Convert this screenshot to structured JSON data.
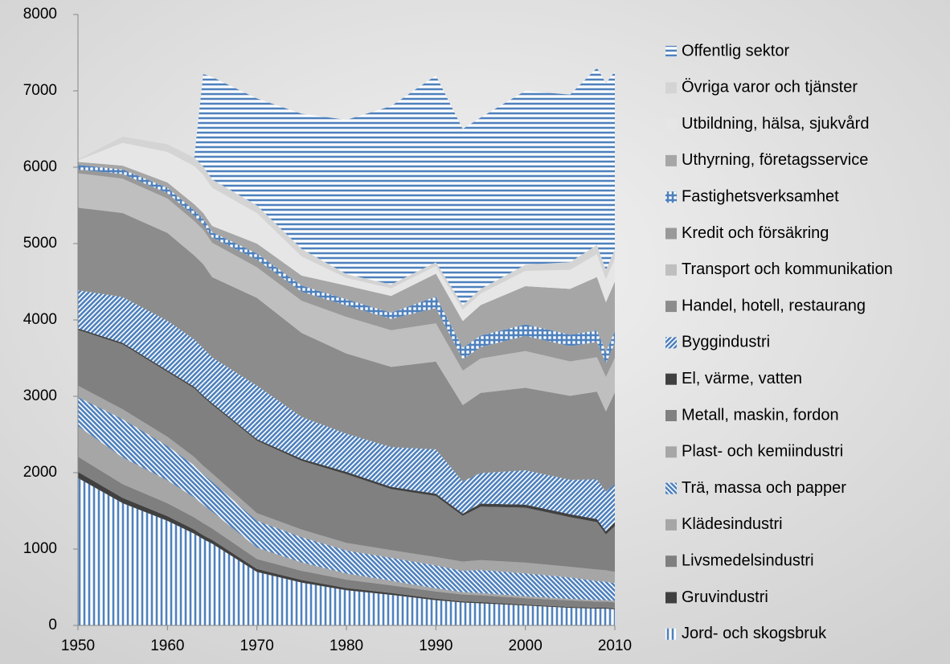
{
  "chart_data": {
    "type": "stacked_area",
    "x": [
      1950,
      1955,
      1960,
      1963,
      1964,
      1965,
      1970,
      1975,
      1980,
      1985,
      1990,
      1993,
      1995,
      2000,
      2005,
      2008,
      2009,
      2010
    ],
    "xlim": [
      1950,
      2010
    ],
    "xticks": [
      1950,
      1960,
      1970,
      1980,
      1990,
      2000,
      2010
    ],
    "ylim": [
      0,
      8000
    ],
    "yticks": [
      0,
      1000,
      2000,
      3000,
      4000,
      5000,
      6000,
      7000,
      8000
    ],
    "series": [
      {
        "name": "Jord- och skogsbruk",
        "color": "#4f81bd",
        "pattern": "vertical",
        "values": [
          1930,
          1600,
          1370,
          1200,
          1130,
          1070,
          700,
          560,
          460,
          400,
          330,
          300,
          290,
          260,
          230,
          220,
          220,
          210
        ]
      },
      {
        "name": "Gruvindustri",
        "color": "#404040",
        "values": [
          80,
          70,
          60,
          55,
          50,
          50,
          40,
          35,
          30,
          25,
          20,
          15,
          15,
          12,
          12,
          12,
          12,
          12
        ]
      },
      {
        "name": "Livsmedelsindustri",
        "color": "#7f7f7f",
        "values": [
          200,
          180,
          170,
          160,
          160,
          150,
          130,
          120,
          110,
          100,
          95,
          90,
          90,
          85,
          85,
          80,
          80,
          80
        ]
      },
      {
        "name": "Klädesindustri",
        "color": "#a6a6a6",
        "values": [
          400,
          350,
          300,
          260,
          240,
          220,
          150,
          110,
          80,
          60,
          40,
          30,
          30,
          25,
          20,
          20,
          20,
          20
        ]
      },
      {
        "name": "Trä, massa och papper",
        "color": "#4f81bd",
        "pattern": "diagonal-down",
        "values": [
          380,
          500,
          450,
          420,
          400,
          390,
          350,
          330,
          300,
          300,
          300,
          280,
          300,
          300,
          280,
          250,
          240,
          230
        ]
      },
      {
        "name": "Plast- och kemiindustri",
        "color": "#a6a6a6",
        "values": [
          150,
          130,
          120,
          110,
          110,
          110,
          100,
          100,
          100,
          100,
          110,
          120,
          130,
          140,
          140,
          150,
          150,
          150
        ]
      },
      {
        "name": "Metall, maskin, fordon",
        "color": "#808080",
        "values": [
          730,
          850,
          850,
          900,
          900,
          900,
          950,
          900,
          900,
          800,
          800,
          600,
          700,
          720,
          650,
          620,
          470,
          600
        ]
      },
      {
        "name": "El, värme, vatten",
        "color": "#404040",
        "values": [
          20,
          20,
          20,
          20,
          20,
          20,
          20,
          25,
          30,
          30,
          30,
          30,
          40,
          40,
          40,
          40,
          40,
          50
        ]
      },
      {
        "name": "Byggindustri",
        "color": "#4f81bd",
        "pattern": "diagonal-up",
        "values": [
          500,
          600,
          650,
          620,
          620,
          600,
          700,
          550,
          500,
          520,
          580,
          420,
          400,
          450,
          450,
          520,
          520,
          500
        ]
      },
      {
        "name": "Handel, hotell, restaurang",
        "color": "#8c8c8c",
        "values": [
          1080,
          1100,
          1150,
          1100,
          1100,
          1050,
          1150,
          1100,
          1050,
          1050,
          1150,
          1000,
          1050,
          1080,
          1100,
          1150,
          1050,
          1200
        ]
      },
      {
        "name": "Transport och kommunikation",
        "color": "#bfbfbf",
        "values": [
          450,
          450,
          450,
          450,
          450,
          450,
          400,
          420,
          480,
          480,
          500,
          450,
          450,
          480,
          450,
          450,
          450,
          450
        ]
      },
      {
        "name": "Kredit och försäkring",
        "color": "#999999",
        "values": [
          50,
          60,
          70,
          70,
          70,
          70,
          100,
          120,
          150,
          150,
          200,
          150,
          150,
          200,
          200,
          200,
          180,
          200
        ]
      },
      {
        "name": "Fastighetsverksamhet",
        "color": "#4f81bd",
        "pattern": "grid",
        "values": [
          60,
          60,
          70,
          70,
          70,
          70,
          80,
          80,
          80,
          80,
          150,
          150,
          150,
          150,
          150,
          150,
          150,
          150
        ]
      },
      {
        "name": "Uthyrning, företagsservice",
        "color": "#a6a6a6",
        "values": [
          40,
          50,
          70,
          80,
          80,
          80,
          130,
          130,
          180,
          220,
          300,
          350,
          400,
          500,
          600,
          700,
          650,
          650
        ]
      },
      {
        "name": "Utbildning, hälsa, sjukvård",
        "color": "#e6e6e6",
        "values": [
          20,
          300,
          400,
          500,
          500,
          500,
          400,
          250,
          100,
          100,
          100,
          150,
          150,
          200,
          250,
          300,
          300,
          300
        ]
      },
      {
        "name": "Övriga varor och tjänster",
        "color": "#d4d4d4",
        "values": [
          10,
          80,
          100,
          110,
          110,
          110,
          100,
          100,
          50,
          50,
          50,
          60,
          60,
          80,
          100,
          120,
          120,
          120
        ]
      },
      {
        "name": "Offentlig sektor",
        "color": "#4f81bd",
        "pattern": "horizontal",
        "values": [
          0,
          0,
          0,
          0,
          1210,
          1340,
          1400,
          1770,
          2020,
          2335,
          2445,
          2305,
          2245,
          2278,
          2193,
          2318,
          2448,
          2328
        ]
      }
    ]
  }
}
